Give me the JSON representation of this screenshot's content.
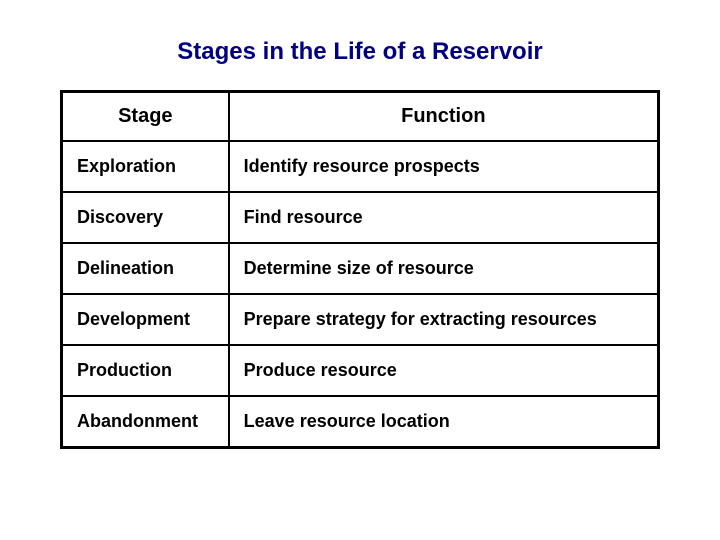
{
  "title": "Stages in the Life of a Reservoir",
  "table": {
    "columns": [
      "Stage",
      "Function"
    ],
    "column_widths": [
      "28%",
      "72%"
    ],
    "header_align": "center",
    "cell_align": "left",
    "rows": [
      [
        "Exploration",
        "Identify resource prospects"
      ],
      [
        "Discovery",
        "Find resource"
      ],
      [
        "Delineation",
        "Determine size of resource"
      ],
      [
        "Development",
        "Prepare strategy for extracting resources"
      ],
      [
        "Production",
        "Produce resource"
      ],
      [
        "Abandonment",
        "Leave resource location"
      ]
    ]
  },
  "style": {
    "title_color": "#000080",
    "title_fontsize": 24,
    "header_fontsize": 20,
    "cell_fontsize": 18,
    "border_color": "#000000",
    "outer_border_width": 3,
    "inner_border_width": 2,
    "background_color": "#ffffff",
    "text_color": "#000000",
    "font_family": "Arial",
    "font_weight": "bold"
  }
}
